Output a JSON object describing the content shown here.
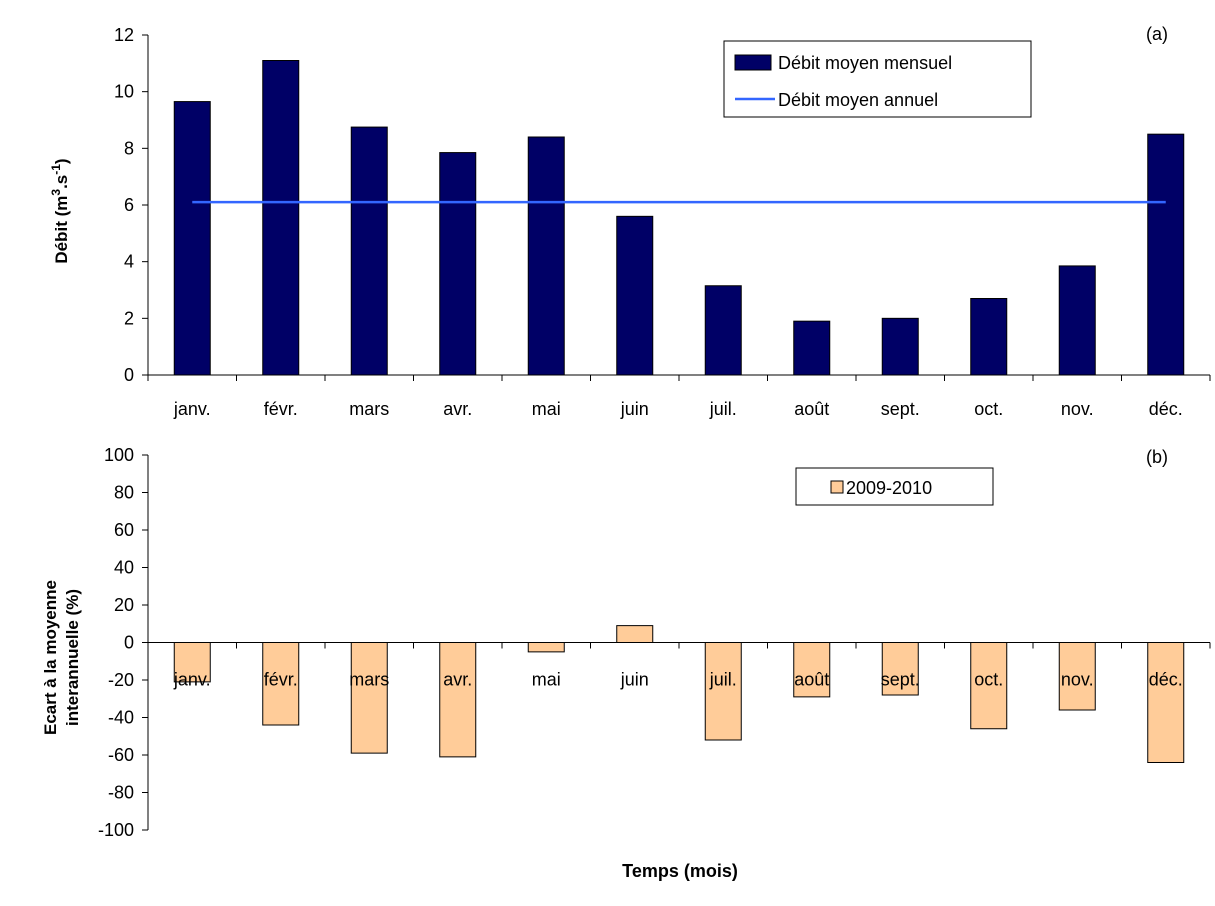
{
  "chart_data": [
    {
      "type": "bar",
      "panel_label": "(a)",
      "categories": [
        "janv.",
        "févr.",
        "mars",
        "avr.",
        "mai",
        "juin",
        "juil.",
        "août",
        "sept.",
        "oct.",
        "nov.",
        "déc."
      ],
      "series": [
        {
          "name": "Débit moyen mensuel",
          "kind": "bar",
          "color": "#000066",
          "values": [
            9.65,
            11.1,
            8.75,
            7.85,
            8.4,
            5.6,
            3.15,
            1.9,
            2.0,
            2.7,
            3.85,
            8.5
          ]
        },
        {
          "name": "Débit moyen annuel",
          "kind": "line",
          "color": "#3366ff",
          "values": [
            6.1,
            6.1,
            6.1,
            6.1,
            6.1,
            6.1,
            6.1,
            6.1,
            6.1,
            6.1,
            6.1,
            6.1
          ]
        }
      ],
      "ylabel": {
        "main": "Débit (m",
        "sup1": "3",
        "mid": ".s",
        "sup2": "-1",
        "end": ")"
      },
      "ylim": [
        0,
        12
      ],
      "yticks": [
        0,
        2,
        4,
        6,
        8,
        10,
        12
      ],
      "legend_position": "top-right"
    },
    {
      "type": "bar",
      "panel_label": "(b)",
      "categories": [
        "janv.",
        "févr.",
        "mars",
        "avr.",
        "mai",
        "juin",
        "juil.",
        "août",
        "sept.",
        "oct.",
        "nov.",
        "déc."
      ],
      "series": [
        {
          "name": "2009-2010",
          "kind": "bar",
          "color": "#ffcc99",
          "values": [
            -21,
            -44,
            -59,
            -61,
            -5,
            9,
            -52,
            -29,
            -28,
            -46,
            -36,
            -64
          ]
        }
      ],
      "ylabel_lines": [
        "Ecart à la moyenne",
        "interannuelle (%)"
      ],
      "xlabel": "Temps (mois)",
      "ylim": [
        -100,
        100
      ],
      "yticks": [
        -100,
        -80,
        -60,
        -40,
        -20,
        0,
        20,
        40,
        60,
        80,
        100
      ],
      "legend_position": "top-right"
    }
  ]
}
